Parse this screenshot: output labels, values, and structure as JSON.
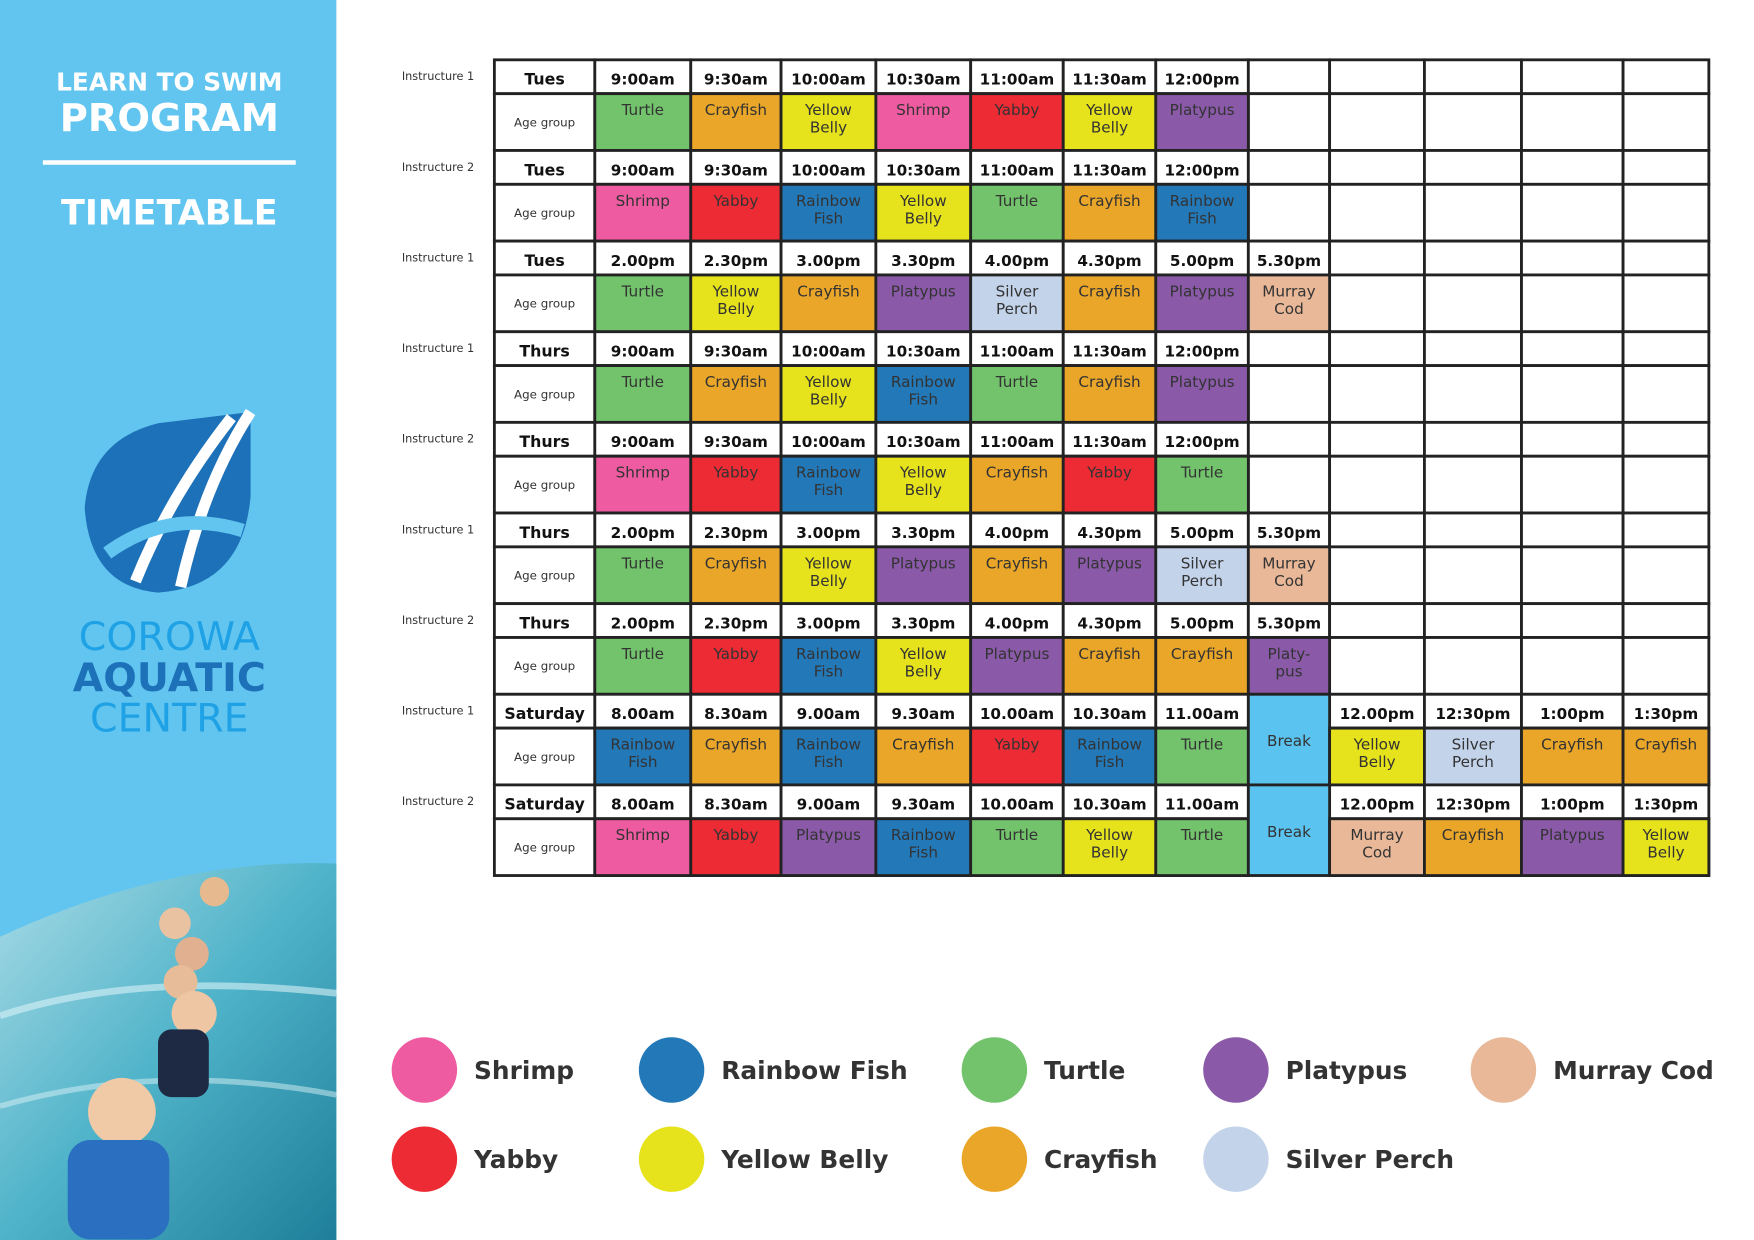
{
  "header": {
    "line1": "LEARN TO SWIM",
    "line2": "PROGRAM",
    "subtitle": "TIMETABLE"
  },
  "logo": {
    "line1": "COROWA",
    "line2": "AQUATIC",
    "line3": "CENTRE"
  },
  "row_label": "Age group",
  "blocks": [
    {
      "instructor": "Instructure 1",
      "day": "Tues",
      "times": [
        "9:00am",
        "9:30am",
        "10:00am",
        "10:30am",
        "11:00am",
        "11:30am",
        "12:00pm"
      ],
      "groups": [
        "Turtle",
        "Crayfish",
        "Yellow Belly",
        "Shrimp",
        "Yabby",
        "Yellow Belly",
        "Platypus"
      ]
    },
    {
      "instructor": "Instructure 2",
      "day": "Tues",
      "times": [
        "9:00am",
        "9:30am",
        "10:00am",
        "10:30am",
        "11:00am",
        "11:30am",
        "12:00pm"
      ],
      "groups": [
        "Shrimp",
        "Yabby",
        "Rainbow Fish",
        "Yellow Belly",
        "Turtle",
        "Crayfish",
        "Rainbow Fish"
      ]
    },
    {
      "instructor": "Instructure 1",
      "day": "Tues",
      "times": [
        "2.00pm",
        "2.30pm",
        "3.00pm",
        "3.30pm",
        "4.00pm",
        "4.30pm",
        "5.00pm",
        "5.30pm"
      ],
      "groups": [
        "Turtle",
        "Yellow Belly",
        "Crayfish",
        "Platypus",
        "Silver Perch",
        "Crayfish",
        "Platypus",
        "Murray Cod"
      ]
    },
    {
      "instructor": "Instructure 1",
      "day": "Thurs",
      "times": [
        "9:00am",
        "9:30am",
        "10:00am",
        "10:30am",
        "11:00am",
        "11:30am",
        "12:00pm"
      ],
      "groups": [
        "Turtle",
        "Crayfish",
        "Yellow Belly",
        "Rainbow Fish",
        "Turtle",
        "Crayfish",
        "Platypus"
      ]
    },
    {
      "instructor": "Instructure 2",
      "day": "Thurs",
      "times": [
        "9:00am",
        "9:30am",
        "10:00am",
        "10:30am",
        "11:00am",
        "11:30am",
        "12:00pm"
      ],
      "groups": [
        "Shrimp",
        "Yabby",
        "Rainbow Fish",
        "Yellow Belly",
        "Crayfish",
        "Yabby",
        "Turtle"
      ]
    },
    {
      "instructor": "Instructure 1",
      "day": "Thurs",
      "times": [
        "2.00pm",
        "2.30pm",
        "3.00pm",
        "3.30pm",
        "4.00pm",
        "4.30pm",
        "5.00pm",
        "5.30pm"
      ],
      "groups": [
        "Turtle",
        "Crayfish",
        "Yellow Belly",
        "Platypus",
        "Crayfish",
        "Platypus",
        "Silver Perch",
        "Murray Cod"
      ]
    },
    {
      "instructor": "Instructure 2",
      "day": "Thurs",
      "times": [
        "2.00pm",
        "2.30pm",
        "3.00pm",
        "3.30pm",
        "4.00pm",
        "4.30pm",
        "5.00pm",
        "5.30pm"
      ],
      "groups": [
        "Turtle",
        "Yabby",
        "Rainbow Fish",
        "Yellow Belly",
        "Platypus",
        "Crayfish",
        "Crayfish",
        "Platy- pus"
      ]
    },
    {
      "instructor": "Instructure 1",
      "day": "Saturday",
      "times": [
        "8.00am",
        "8.30am",
        "9.00am",
        "9.30am",
        "10.00am",
        "10.30am",
        "11.00am"
      ],
      "groups": [
        "Rainbow Fish",
        "Crayfish",
        "Rainbow Fish",
        "Crayfish",
        "Yabby",
        "Rainbow Fish",
        "Turtle"
      ],
      "break": "Break",
      "after_break": {
        "times": [
          "12.00pm",
          "12:30pm",
          "1:00pm",
          "1:30pm"
        ],
        "groups": [
          "Yellow Belly",
          "Silver Perch",
          "Crayfish",
          "Crayfish"
        ]
      }
    },
    {
      "instructor": "Instructure 2",
      "day": "Saturday",
      "times": [
        "8.00am",
        "8.30am",
        "9.00am",
        "9.30am",
        "10.00am",
        "10.30am",
        "11.00am"
      ],
      "groups": [
        "Shrimp",
        "Yabby",
        "Platypus",
        "Rainbow Fish",
        "Turtle",
        "Yellow Belly",
        "Turtle"
      ],
      "break": "Break",
      "after_break": {
        "times": [
          "12.00pm",
          "12:30pm",
          "1:00pm",
          "1:30pm"
        ],
        "groups": [
          "Murray Cod",
          "Crayfish",
          "Platypus",
          "Yellow Belly"
        ]
      }
    }
  ],
  "legend": [
    {
      "name": "Shrimp",
      "color": "#ee5ba0"
    },
    {
      "name": "Rainbow Fish",
      "color": "#2378b8"
    },
    {
      "name": "Turtle",
      "color": "#72c36c"
    },
    {
      "name": "Platypus",
      "color": "#8a5aa8"
    },
    {
      "name": "Murray Cod",
      "color": "#e8b898"
    },
    {
      "name": "Yabby",
      "color": "#ec2b34"
    },
    {
      "name": "Yellow Belly",
      "color": "#e6e21c"
    },
    {
      "name": "Crayfish",
      "color": "#e9a628"
    },
    {
      "name": "Silver Perch",
      "color": "#c3d3ea"
    }
  ]
}
